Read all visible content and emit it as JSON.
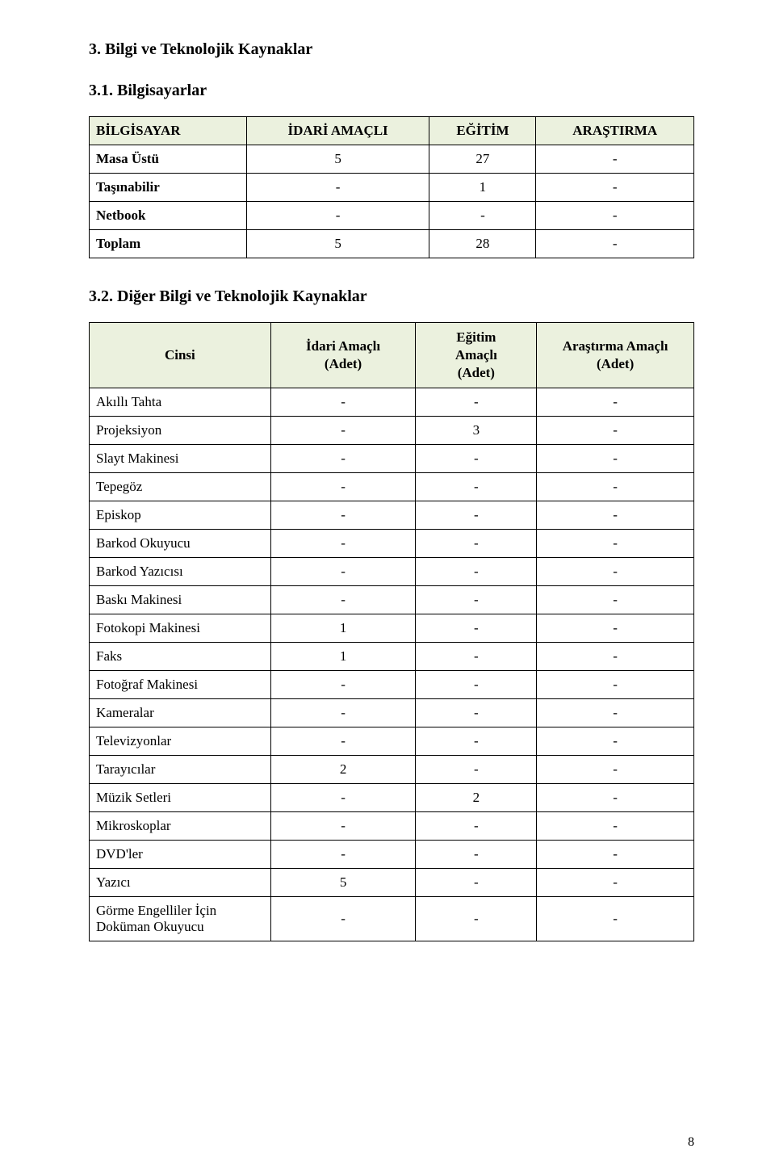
{
  "heading_main": "3. Bilgi ve Teknolojik Kaynaklar",
  "section1": {
    "heading": "3.1. Bilgisayarlar",
    "columns": [
      "BİLGİSAYAR",
      "İDARİ AMAÇLI",
      "EĞİTİM",
      "ARAŞTIRMA"
    ],
    "rows": [
      {
        "label": "Masa Üstü",
        "c1": "5",
        "c2": "27",
        "c3": "-",
        "bold": false
      },
      {
        "label": "Taşınabilir",
        "c1": "-",
        "c2": "1",
        "c3": "-",
        "bold": false
      },
      {
        "label": "Netbook",
        "c1": "-",
        "c2": "-",
        "c3": "-",
        "bold": false
      },
      {
        "label": "Toplam",
        "c1": "5",
        "c2": "28",
        "c3": "-",
        "bold": true
      }
    ]
  },
  "section2": {
    "heading": "3.2. Diğer Bilgi ve Teknolojik Kaynaklar",
    "columns": [
      "Cinsi",
      "İdari Amaçlı (Adet)",
      "Eğitim Amaçlı (Adet)",
      "Araştırma Amaçlı (Adet)"
    ],
    "rows": [
      {
        "label": "Akıllı Tahta",
        "c1": "-",
        "c2": "-",
        "c3": "-"
      },
      {
        "label": "Projeksiyon",
        "c1": "-",
        "c2": "3",
        "c3": "-"
      },
      {
        "label": "Slayt Makinesi",
        "c1": "-",
        "c2": "-",
        "c3": "-"
      },
      {
        "label": "Tepegöz",
        "c1": "-",
        "c2": "-",
        "c3": "-"
      },
      {
        "label": "Episkop",
        "c1": "-",
        "c2": "-",
        "c3": "-"
      },
      {
        "label": "Barkod Okuyucu",
        "c1": "-",
        "c2": "-",
        "c3": "-"
      },
      {
        "label": "Barkod Yazıcısı",
        "c1": "-",
        "c2": "-",
        "c3": "-"
      },
      {
        "label": "Baskı Makinesi",
        "c1": "-",
        "c2": "-",
        "c3": "-"
      },
      {
        "label": "Fotokopi Makinesi",
        "c1": "1",
        "c2": "-",
        "c3": "-"
      },
      {
        "label": "Faks",
        "c1": "1",
        "c2": "-",
        "c3": "-"
      },
      {
        "label": "Fotoğraf Makinesi",
        "c1": "-",
        "c2": "-",
        "c3": "-"
      },
      {
        "label": "Kameralar",
        "c1": "-",
        "c2": "-",
        "c3": "-"
      },
      {
        "label": "Televizyonlar",
        "c1": "-",
        "c2": "-",
        "c3": "-"
      },
      {
        "label": "Tarayıcılar",
        "c1": "2",
        "c2": "-",
        "c3": "-"
      },
      {
        "label": "Müzik Setleri",
        "c1": "-",
        "c2": "2",
        "c3": "-"
      },
      {
        "label": "Mikroskoplar",
        "c1": "-",
        "c2": "-",
        "c3": "-"
      },
      {
        "label": "DVD'ler",
        "c1": "-",
        "c2": "-",
        "c3": "-"
      },
      {
        "label": "Yazıcı",
        "c1": "5",
        "c2": "-",
        "c3": "-"
      },
      {
        "label": "Görme Engelliler İçin Doküman  Okuyucu",
        "c1": "-",
        "c2": "-",
        "c3": "-"
      }
    ]
  },
  "page_number": "8",
  "styling": {
    "header_bg": "#ebf1de",
    "border_color": "#000000",
    "body_bg": "#ffffff",
    "text_color": "#000000",
    "font_family": "Times New Roman",
    "title_fontsize": 20,
    "cell_fontsize": 17
  }
}
